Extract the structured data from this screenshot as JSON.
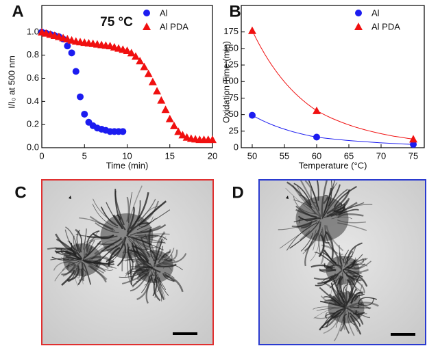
{
  "chart_data": [
    {
      "type": "scatter",
      "panel": "A",
      "annotation": "75 °C",
      "x_label": "Time (min)",
      "y_label": "I/I₀ at 500 nm",
      "xlim": [
        0,
        20
      ],
      "ylim": [
        0,
        1.23
      ],
      "xticks": [
        0,
        5,
        10,
        15,
        20
      ],
      "yticks": [
        {
          "value": 0,
          "label": "0.0"
        },
        {
          "value": 0.2,
          "label": "0.2"
        },
        {
          "value": 0.4,
          "label": "0.4"
        },
        {
          "value": 0.6,
          "label": "0.6"
        },
        {
          "value": 0.8,
          "label": "0.8"
        },
        {
          "value": 1,
          "label": "1.0"
        }
      ],
      "legend": "upper right",
      "series": [
        {
          "name": "Al",
          "color": "#1c1cf0",
          "marker": "circle",
          "x": [
            0,
            0.5,
            1,
            1.5,
            2,
            2.5,
            3,
            3.5,
            4,
            4.5,
            5,
            5.5,
            6,
            6.5,
            7,
            7.5,
            8,
            8.5,
            9,
            9.5
          ],
          "values": [
            1.0,
            0.99,
            0.98,
            0.97,
            0.96,
            0.94,
            0.88,
            0.82,
            0.66,
            0.44,
            0.29,
            0.22,
            0.19,
            0.17,
            0.16,
            0.15,
            0.14,
            0.14,
            0.14,
            0.14
          ]
        },
        {
          "name": "Al PDA",
          "color": "#f01010",
          "marker": "triangle",
          "x": [
            0,
            0.5,
            1,
            1.5,
            2,
            2.5,
            3,
            3.5,
            4,
            4.5,
            5,
            5.5,
            6,
            6.5,
            7,
            7.5,
            8,
            8.5,
            9,
            9.5,
            10,
            10.5,
            11,
            11.5,
            12,
            12.5,
            13,
            13.5,
            14,
            14.5,
            15,
            15.5,
            16,
            16.5,
            17,
            17.5,
            18,
            18.5,
            19,
            19.5,
            20
          ],
          "values": [
            1.0,
            0.99,
            0.98,
            0.97,
            0.96,
            0.95,
            0.94,
            0.93,
            0.92,
            0.915,
            0.91,
            0.905,
            0.9,
            0.895,
            0.89,
            0.885,
            0.88,
            0.87,
            0.86,
            0.85,
            0.84,
            0.82,
            0.79,
            0.75,
            0.7,
            0.64,
            0.57,
            0.49,
            0.41,
            0.33,
            0.25,
            0.19,
            0.14,
            0.11,
            0.09,
            0.08,
            0.075,
            0.07,
            0.07,
            0.07,
            0.07
          ]
        }
      ]
    },
    {
      "type": "scatter",
      "panel": "B",
      "x_label": "Temperature (°C)",
      "y_label": "Oxidation Time (min)",
      "xlim": [
        48.3,
        76.7
      ],
      "ylim": [
        0,
        215
      ],
      "xticks": [
        50,
        55,
        60,
        65,
        70,
        75
      ],
      "yticks": [
        0,
        25,
        50,
        75,
        100,
        125,
        150,
        175
      ],
      "legend": "upper right",
      "fit": true,
      "series": [
        {
          "name": "Al",
          "color": "#1c1cf0",
          "marker": "circle",
          "x": [
            50,
            60,
            75
          ],
          "values": [
            49,
            16,
            5
          ]
        },
        {
          "name": "Al PDA",
          "color": "#f01010",
          "marker": "triangle",
          "x": [
            50,
            60,
            75
          ],
          "values": [
            177,
            56,
            13
          ]
        }
      ]
    }
  ],
  "images": [
    {
      "panel": "C",
      "border": "#e03030"
    },
    {
      "panel": "D",
      "border": "#2a3ad0"
    }
  ]
}
